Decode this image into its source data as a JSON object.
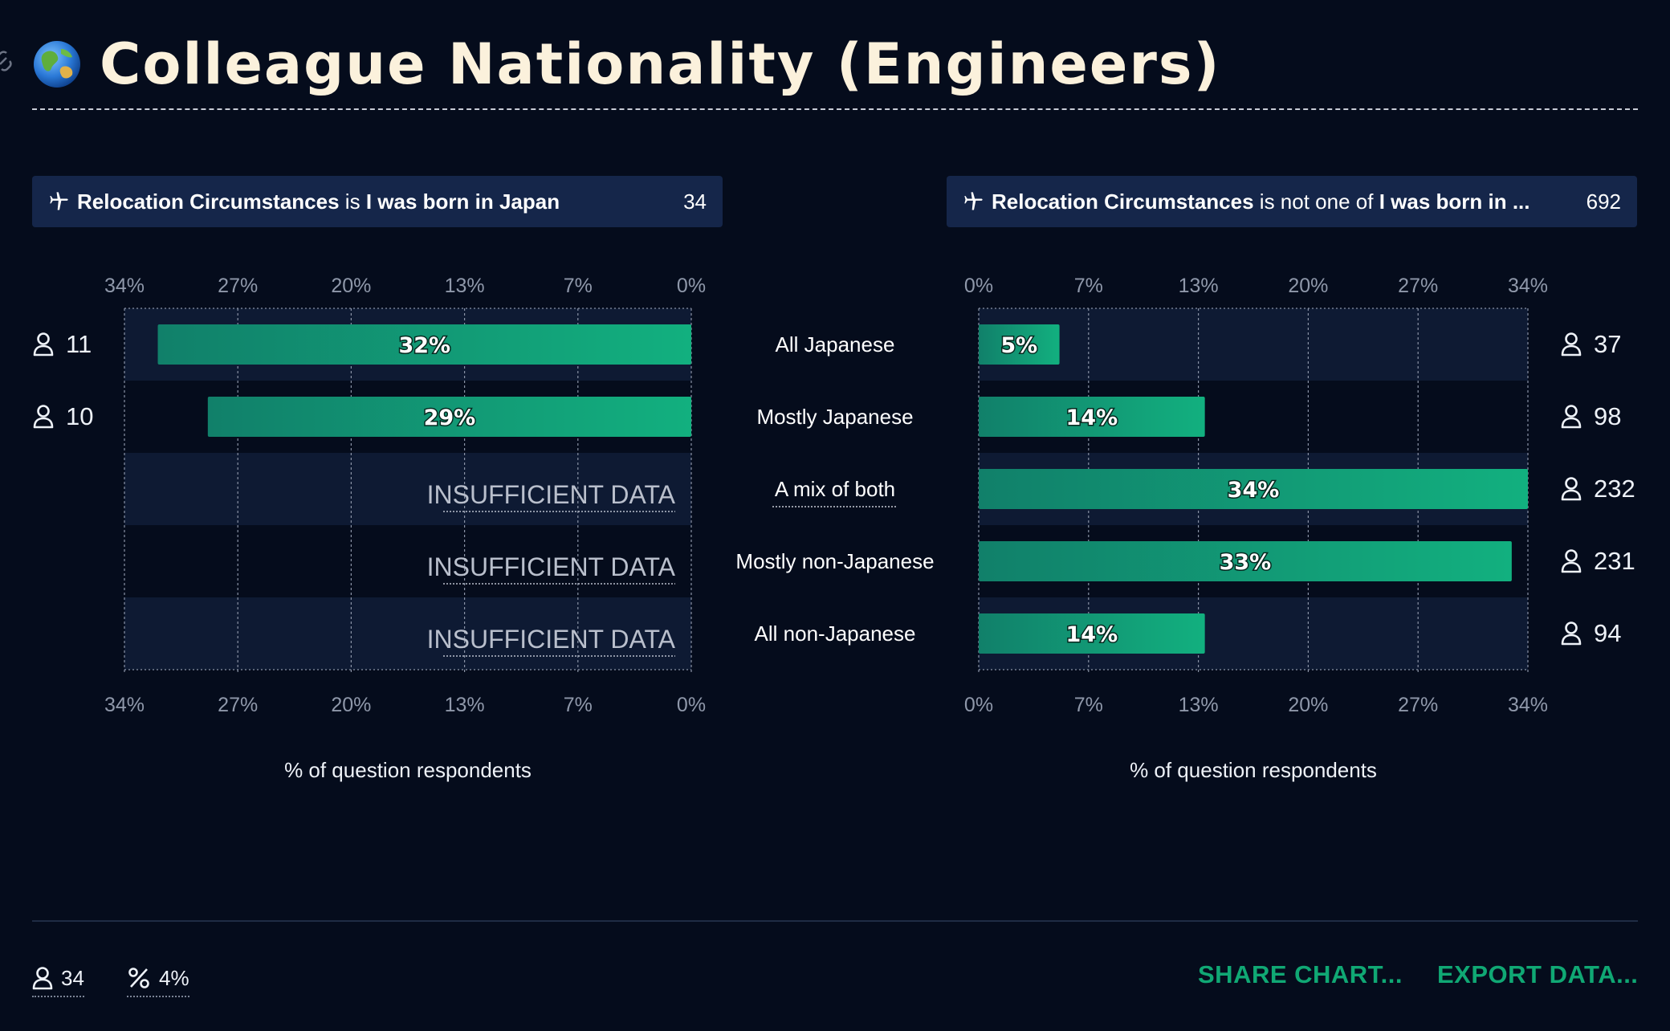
{
  "header": {
    "title": "Colleague Nationality (Engineers)",
    "title_icon": "globe-icon"
  },
  "filters": {
    "left": {
      "field": "Relocation Circumstances",
      "operator": "is",
      "value": "I was born in Japan",
      "count": "34"
    },
    "right": {
      "field": "Relocation Circumstances",
      "operator": "is not one of",
      "value": "I was born in ...",
      "count": "692"
    }
  },
  "insufficient_label": "INSUFFICIENT DATA",
  "chart_data": {
    "type": "bar",
    "categories": [
      "All Japanese",
      "Mostly Japanese",
      "A mix of both",
      "Mostly non-Japanese",
      "All non-Japanese"
    ],
    "xlabel": "% of question respondents",
    "xlim": [
      0,
      34
    ],
    "tick_labels": [
      "0%",
      "7%",
      "13%",
      "20%",
      "27%",
      "34%"
    ],
    "bar_colors": [
      "#11806a",
      "#12b07f"
    ],
    "series": [
      {
        "side": "left",
        "values": [
          32,
          29,
          null,
          null,
          null
        ],
        "labels": [
          "32%",
          "29%",
          null,
          null,
          null
        ],
        "counts": [
          "11",
          "10",
          null,
          null,
          null
        ]
      },
      {
        "side": "right",
        "values": [
          5,
          14,
          34,
          33,
          14
        ],
        "labels": [
          "5%",
          "14%",
          "34%",
          "33%",
          "14%"
        ],
        "counts": [
          "37",
          "98",
          "232",
          "231",
          "94"
        ]
      }
    ]
  },
  "footer": {
    "respondents": "34",
    "percent": "4%",
    "share_label": "SHARE CHART...",
    "export_label": "EXPORT DATA..."
  }
}
